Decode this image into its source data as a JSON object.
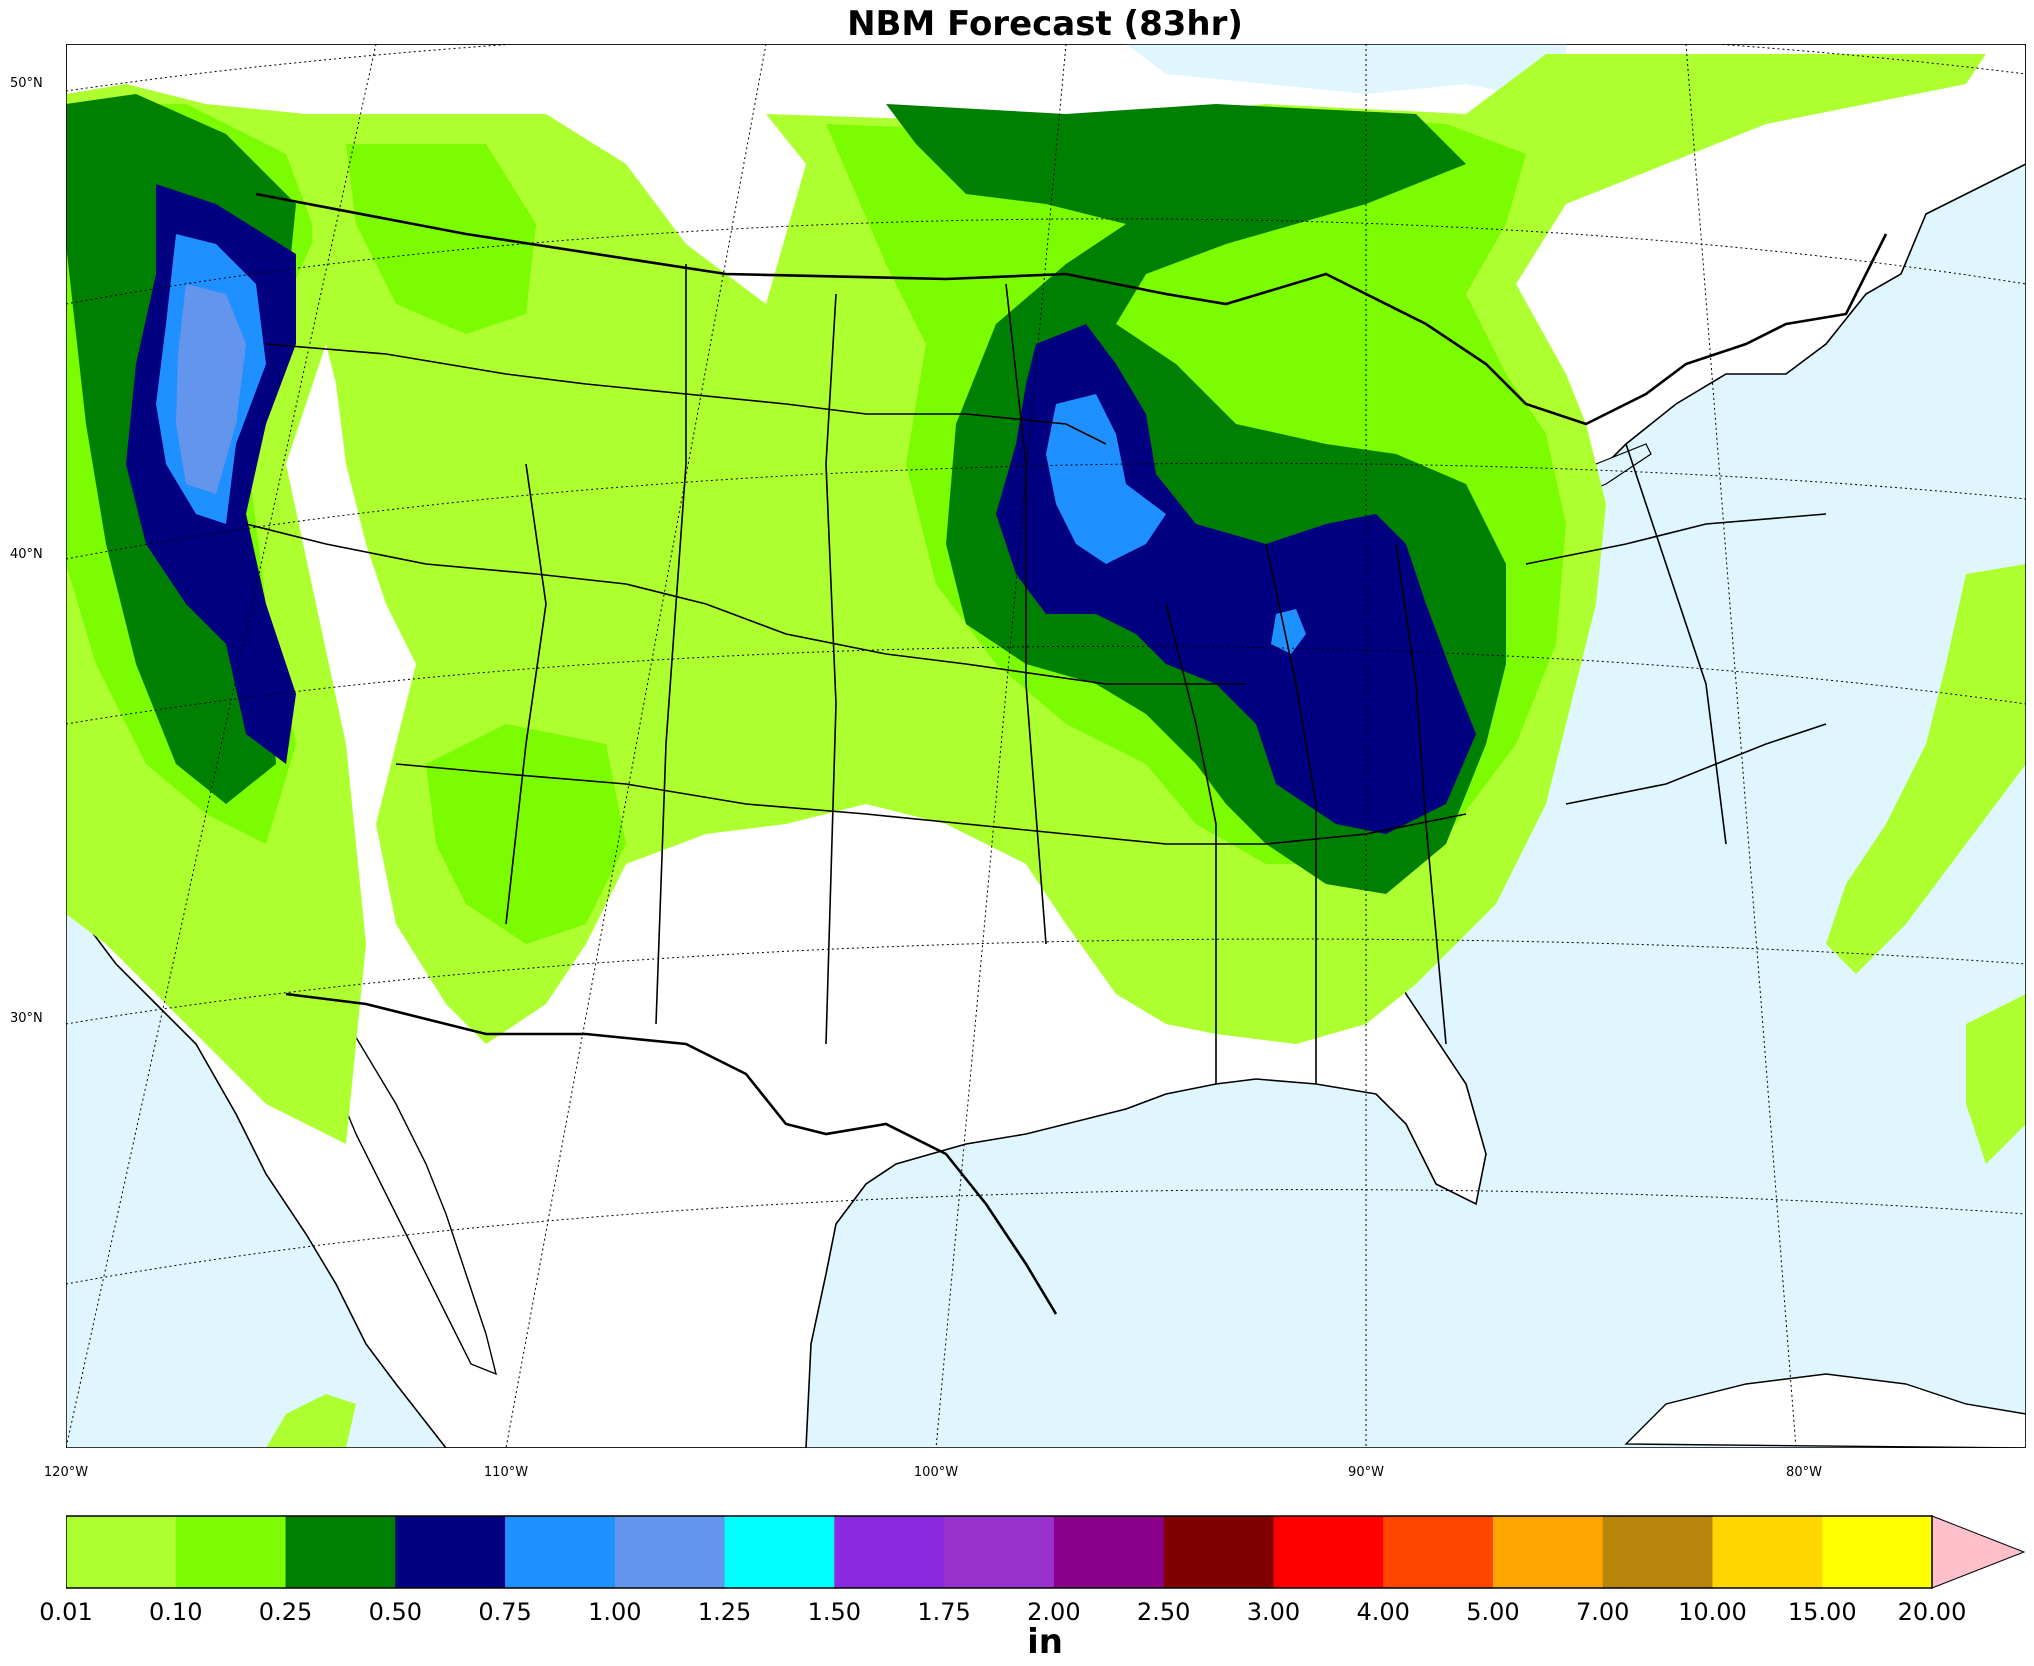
{
  "title": "NBM Forecast (83hr)",
  "lat_labels": [
    {
      "text": "50°N",
      "lat": 50
    },
    {
      "text": "40°N",
      "lat": 40
    },
    {
      "text": "30°N",
      "lat": 30
    }
  ],
  "lon_labels": [
    {
      "text": "120°W",
      "lon": -120
    },
    {
      "text": "110°W",
      "lon": -110
    },
    {
      "text": "100°W",
      "lon": -100
    },
    {
      "text": "90°W",
      "lon": -90
    },
    {
      "text": "80°W",
      "lon": -80
    }
  ],
  "colorbar": {
    "units": "in",
    "ticks": [
      "0.01",
      "0.10",
      "0.25",
      "0.50",
      "0.75",
      "1.00",
      "1.25",
      "1.50",
      "1.75",
      "2.00",
      "2.50",
      "3.00",
      "4.00",
      "5.00",
      "7.00",
      "10.00",
      "15.00",
      "20.00"
    ],
    "colors": [
      "#adff2f",
      "#7cfc00",
      "#008000",
      "#000080",
      "#1e90ff",
      "#6495ed",
      "#00ffff",
      "#8a2be2",
      "#9932cc",
      "#8b008b",
      "#800000",
      "#ff0000",
      "#ff4500",
      "#ffa500",
      "#b8860b",
      "#ffd700",
      "#ffff00"
    ],
    "extend_color": "#ffc0cb"
  },
  "colors": {
    "ocean": "#dff6fe",
    "land": "#ffffff"
  }
}
